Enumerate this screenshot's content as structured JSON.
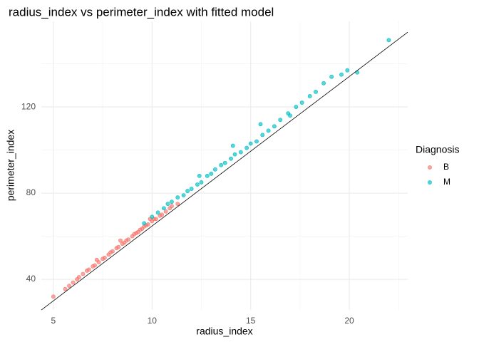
{
  "chart_data": {
    "type": "scatter",
    "title": "radius_index vs perimeter_index with fitted model",
    "x_label": "radius_index",
    "y_label": "perimeter_index",
    "legend_title": "Diagnosis",
    "legend_position": "right",
    "xlim": [
      4.39,
      22.96
    ],
    "ylim": [
      25.8,
      159.7
    ],
    "xticks": [
      5,
      10,
      15,
      20
    ],
    "yticks": [
      40,
      80,
      120
    ],
    "xminor": [
      7.5,
      12.5,
      17.5,
      22.5
    ],
    "yminor": [
      60,
      100,
      140
    ],
    "grid": true,
    "fit": {
      "slope": 6.94,
      "intercept": -4.67,
      "color": "#000000"
    },
    "series": [
      {
        "name": "B",
        "color": "#F8766D",
        "x": [
          5.0,
          5.6,
          5.8,
          6.0,
          6.2,
          6.3,
          6.5,
          6.7,
          6.8,
          7.0,
          7.1,
          7.3,
          7.5,
          7.6,
          7.8,
          7.9,
          8.0,
          8.2,
          8.3,
          8.5,
          8.6,
          8.7,
          8.8,
          9.0,
          9.1,
          9.2,
          9.3,
          9.4,
          9.5,
          9.6,
          9.7,
          9.8,
          10.0,
          10.1,
          10.2,
          10.4,
          10.5,
          10.7,
          10.9,
          11.0,
          11.3,
          8.4,
          7.2,
          9.9
        ],
        "values": [
          32,
          35.5,
          37,
          38.5,
          40,
          41,
          42.5,
          44,
          44.5,
          46,
          46.5,
          48,
          49.5,
          50,
          51.5,
          52.5,
          53,
          54.5,
          55,
          56.5,
          57,
          58,
          58.5,
          60,
          61,
          61.5,
          62,
          63,
          63.5,
          64.5,
          65,
          65.5,
          67,
          68,
          68,
          69.5,
          70,
          71.5,
          73,
          74,
          75,
          58,
          49,
          68
        ]
      },
      {
        "name": "M",
        "color": "#00BFC4",
        "x": [
          9.6,
          10.0,
          10.3,
          10.6,
          10.8,
          11.0,
          11.3,
          11.6,
          11.8,
          12.0,
          12.3,
          12.5,
          12.8,
          13.0,
          13.2,
          13.5,
          13.7,
          14.0,
          14.2,
          14.5,
          14.8,
          15.0,
          15.3,
          15.6,
          15.9,
          16.2,
          16.5,
          16.9,
          17.3,
          17.6,
          18.0,
          18.3,
          18.7,
          19.1,
          19.6,
          19.9,
          20.4,
          22.0,
          12.4,
          14.1,
          15.5,
          17.0
        ],
        "values": [
          66,
          69,
          71,
          73,
          75,
          76,
          78,
          79,
          81,
          82,
          84,
          85,
          88,
          89,
          91,
          93,
          94,
          96,
          98,
          99,
          101,
          103,
          104,
          107,
          109,
          111,
          114,
          117,
          120,
          122,
          125,
          127,
          131,
          134,
          135,
          137,
          136,
          151,
          88,
          102,
          112,
          116
        ]
      }
    ]
  }
}
